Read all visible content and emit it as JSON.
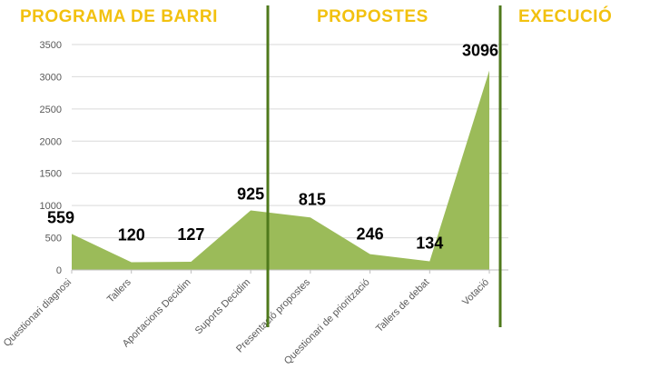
{
  "phases": [
    {
      "label": "PROGRAMA DE BARRI"
    },
    {
      "label": "PROPOSTES"
    },
    {
      "label": "EXECUCIÓ"
    }
  ],
  "colors": {
    "area_fill": "#9bbb59",
    "phase_divider": "#4f7a1c",
    "phase_title": "#f2c10f",
    "gridline": "#d9d9d9",
    "axis": "#bfbfbf"
  },
  "chart_data": {
    "type": "area",
    "categories": [
      "Questionari diagnosi",
      "Tallers",
      "Aportacions Decidim",
      "Suports Decidim",
      "Presentació propostes",
      "Questionari de priorització",
      "Tallers de debat",
      "Votació"
    ],
    "values": [
      559,
      120,
      127,
      925,
      815,
      246,
      134,
      3096
    ],
    "data_labels": [
      "559",
      "120",
      "127",
      "925",
      "815",
      "246",
      "134",
      "3096"
    ],
    "yticks": [
      "0",
      "500",
      "1000",
      "1500",
      "2000",
      "2500",
      "3000",
      "3500"
    ],
    "ylim": [
      0,
      3500
    ],
    "grid": true,
    "legend": "none"
  }
}
